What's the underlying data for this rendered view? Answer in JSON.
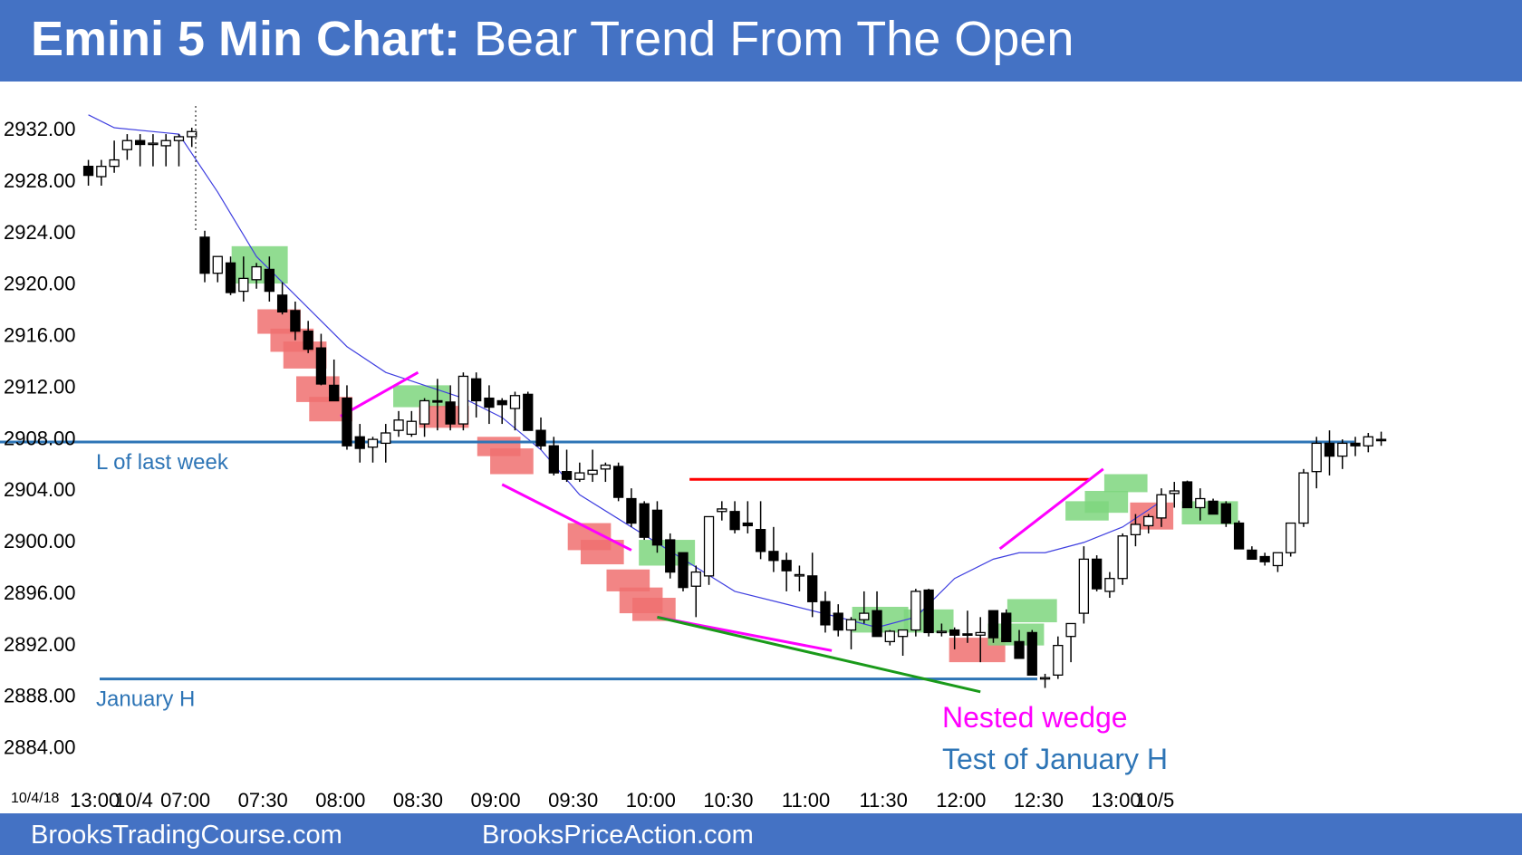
{
  "header": {
    "title_bold": "Emini 5 Min Chart:",
    "title_rest": " Bear Trend From The Open"
  },
  "footer": {
    "left": "BrooksTradingCourse.com",
    "right": "BrooksPriceAction.com"
  },
  "colors": {
    "header_bg": "#4472c4",
    "level_line": "#2e75b6",
    "ema": "#4040e0",
    "bull_box": "#7ed67e",
    "bear_box": "#f07070",
    "wedge": "#ff00ff",
    "trend_green": "#1a9a1a",
    "resistance": "#ff0000"
  },
  "chart_data": {
    "type": "candlestick",
    "date_label": "10/4/18",
    "ylim": [
      2882,
      2934
    ],
    "yticks": [
      "2932.00",
      "2928.00",
      "2924.00",
      "2920.00",
      "2916.00",
      "2912.00",
      "2908.00",
      "2904.00",
      "2900.00",
      "2896.00",
      "2892.00",
      "2888.00",
      "2884.00"
    ],
    "xticks": [
      {
        "label": "13:00",
        "bar": -8.5
      },
      {
        "label": "10/4",
        "bar": -5.5
      },
      {
        "label": "07:00",
        "bar": -1.5
      },
      {
        "label": "07:30",
        "bar": 4.5
      },
      {
        "label": "08:00",
        "bar": 10.5
      },
      {
        "label": "08:30",
        "bar": 16.5
      },
      {
        "label": "09:00",
        "bar": 22.5
      },
      {
        "label": "09:30",
        "bar": 28.5
      },
      {
        "label": "10:00",
        "bar": 34.5
      },
      {
        "label": "10:30",
        "bar": 40.5
      },
      {
        "label": "11:00",
        "bar": 46.5
      },
      {
        "label": "11:30",
        "bar": 52.5
      },
      {
        "label": "12:00",
        "bar": 58.5
      },
      {
        "label": "12:30",
        "bar": 64.5
      },
      {
        "label": "13:00",
        "bar": 70.5
      },
      {
        "label": "10/5",
        "bar": 73.5
      }
    ],
    "prior_day_bars": [
      [
        2929,
        2929.5,
        2927.5,
        2928.3
      ],
      [
        2928.2,
        2929.5,
        2927.5,
        2929.0
      ],
      [
        2929.0,
        2931.0,
        2928.5,
        2929.5
      ],
      [
        2930.3,
        2931.5,
        2929.5,
        2931.0
      ],
      [
        2931.0,
        2931.5,
        2929.0,
        2930.7
      ],
      [
        2930.7,
        2931.5,
        2929.0,
        2930.8
      ],
      [
        2930.6,
        2931.5,
        2929.0,
        2931.0
      ],
      [
        2931.0,
        2931.5,
        2929.0,
        2931.3
      ],
      [
        2931.3,
        2932.0,
        2930.5,
        2931.7
      ]
    ],
    "bars": [
      [
        2923.5,
        2924,
        2920,
        2920.7
      ],
      [
        2920.7,
        2922,
        2920,
        2922
      ],
      [
        2921.5,
        2922,
        2919,
        2919.2
      ],
      [
        2919.3,
        2922,
        2918.5,
        2920.3
      ],
      [
        2920.2,
        2921.5,
        2919.5,
        2921.2
      ],
      [
        2921,
        2922,
        2918.5,
        2919.3
      ],
      [
        2919,
        2920,
        2917.5,
        2917.7
      ],
      [
        2917.8,
        2918.5,
        2915.5,
        2916.2
      ],
      [
        2916.2,
        2917,
        2914.5,
        2914.8
      ],
      [
        2914.9,
        2916,
        2912,
        2912.1
      ],
      [
        2912,
        2914,
        2911,
        2910.8
      ],
      [
        2911,
        2912,
        2907,
        2907.3
      ],
      [
        2908,
        2909,
        2906,
        2907.1
      ],
      [
        2907.2,
        2908,
        2906,
        2907.8
      ],
      [
        2907.5,
        2909,
        2906,
        2908.3
      ],
      [
        2908.5,
        2910,
        2908,
        2909.3
      ],
      [
        2908.2,
        2910,
        2908,
        2909.2
      ],
      [
        2909.0,
        2911,
        2908,
        2910.8
      ],
      [
        2910.8,
        2912.5,
        2908.5,
        2910.7
      ],
      [
        2910.7,
        2912,
        2908.5,
        2909.0
      ],
      [
        2909.0,
        2913,
        2908.5,
        2912.7
      ],
      [
        2912.5,
        2913,
        2909.5,
        2910.8
      ],
      [
        2911,
        2912,
        2909,
        2910.3
      ],
      [
        2910.8,
        2911,
        2909,
        2910.5
      ],
      [
        2910.2,
        2911.5,
        2908.5,
        2911.2
      ],
      [
        2911.3,
        2911.5,
        2908.5,
        2908.5
      ],
      [
        2908.5,
        2909.5,
        2907,
        2907.3
      ],
      [
        2907.3,
        2908,
        2905,
        2905.2
      ],
      [
        2905.3,
        2907,
        2904.5,
        2904.7
      ],
      [
        2904.7,
        2906,
        2904.5,
        2905.2
      ],
      [
        2905.1,
        2907,
        2904.5,
        2905.4
      ],
      [
        2905.5,
        2906,
        2904.5,
        2905.8
      ],
      [
        2905.7,
        2906,
        2903,
        2903.3
      ],
      [
        2903.2,
        2904,
        2901,
        2901.3
      ],
      [
        2902.8,
        2903,
        2900,
        2900.2
      ],
      [
        2902.3,
        2903,
        2899,
        2899.6
      ],
      [
        2900,
        2900.5,
        2897,
        2897.5
      ],
      [
        2899,
        2899,
        2896,
        2896.3
      ],
      [
        2896.4,
        2898,
        2894,
        2897.5
      ],
      [
        2897.2,
        2901,
        2896.5,
        2901.8
      ],
      [
        2902.2,
        2903,
        2901.5,
        2902.4
      ],
      [
        2902.2,
        2903,
        2900.5,
        2900.8
      ],
      [
        2901.3,
        2903,
        2900.5,
        2901.1
      ],
      [
        2900.8,
        2903,
        2898.5,
        2899.1
      ],
      [
        2899.1,
        2901,
        2897.5,
        2898.4
      ],
      [
        2898.4,
        2899,
        2896,
        2897.6
      ],
      [
        2897.2,
        2898,
        2896,
        2897.3
      ],
      [
        2897.2,
        2899,
        2894,
        2895.2
      ],
      [
        2895.2,
        2896,
        2892.8,
        2893.4
      ],
      [
        2894.3,
        2895,
        2892.5,
        2893.0
      ],
      [
        2893.0,
        2894,
        2891.5,
        2893.8
      ],
      [
        2893.8,
        2896,
        2893.5,
        2894.3
      ],
      [
        2894.5,
        2896,
        2892.5,
        2892.5
      ],
      [
        2892.1,
        2893,
        2891.8,
        2892.9
      ],
      [
        2892.5,
        2893,
        2891.0,
        2893.0
      ],
      [
        2893.0,
        2896.2,
        2892.5,
        2896.0
      ],
      [
        2896.1,
        2896.2,
        2892.5,
        2892.8
      ],
      [
        2892.9,
        2893.5,
        2892.5,
        2892.9
      ],
      [
        2893.0,
        2893.2,
        2891.5,
        2892.6
      ],
      [
        2892.7,
        2894.5,
        2892,
        2892.6
      ],
      [
        2892.6,
        2894,
        2890.5,
        2892.8
      ],
      [
        2894.5,
        2894.5,
        2892,
        2892.4
      ],
      [
        2894.3,
        2894.6,
        2892.5,
        2892.1
      ],
      [
        2892.1,
        2893,
        2891,
        2890.8
      ],
      [
        2892.8,
        2893,
        2889.5,
        2889.5
      ],
      [
        2889.2,
        2889.6,
        2888.5,
        2889.3
      ],
      [
        2889.5,
        2892.5,
        2889.2,
        2891.8
      ],
      [
        2892.5,
        2893.5,
        2890.5,
        2893.5
      ],
      [
        2894.3,
        2899.5,
        2893.5,
        2898.5
      ],
      [
        2898.5,
        2898.8,
        2896.0,
        2896.2
      ],
      [
        2896.0,
        2897.5,
        2895.5,
        2897.0
      ],
      [
        2897.0,
        2900.5,
        2896.5,
        2900.3
      ],
      [
        2900.4,
        2902,
        2899.5,
        2901.2
      ],
      [
        2901.1,
        2902,
        2900.5,
        2901.8
      ],
      [
        2901.7,
        2904,
        2901,
        2903.5
      ],
      [
        2903.6,
        2904.5,
        2902.5,
        2903.8
      ],
      [
        2904.5,
        2904.6,
        2902.5,
        2902.5
      ],
      [
        2902.5,
        2904,
        2901.5,
        2903.2
      ],
      [
        2903.0,
        2903.2,
        2902.5,
        2902.0
      ],
      [
        2902.8,
        2903,
        2901.0,
        2901.3
      ],
      [
        2901.3,
        2901.5,
        2900.5,
        2899.3
      ],
      [
        2899.2,
        2899.5,
        2898.5,
        2898.5
      ],
      [
        2898.7,
        2899,
        2898.0,
        2898.3
      ],
      [
        2898.0,
        2899,
        2897.5,
        2899.0
      ],
      [
        2899.0,
        2901.3,
        2898.7,
        2901.3
      ],
      [
        2901.3,
        2905.5,
        2901.0,
        2905.2
      ],
      [
        2905.3,
        2908,
        2904,
        2907.5
      ],
      [
        2907.5,
        2908.5,
        2905,
        2906.5
      ],
      [
        2906.5,
        2907.8,
        2905.5,
        2907.5
      ],
      [
        2907.5,
        2908,
        2906.5,
        2907.3
      ],
      [
        2907.3,
        2908.3,
        2906.8,
        2908.0
      ],
      [
        2907.8,
        2908.4,
        2907.3,
        2907.7
      ]
    ],
    "ema_points": [
      [
        -9,
        2933
      ],
      [
        -7,
        2932
      ],
      [
        -3,
        2931.6
      ],
      [
        -2,
        2931.5
      ],
      [
        1,
        2927
      ],
      [
        4,
        2922
      ],
      [
        8,
        2918
      ],
      [
        11,
        2915
      ],
      [
        14,
        2913
      ],
      [
        17,
        2912
      ],
      [
        20,
        2911
      ],
      [
        23,
        2909.5
      ],
      [
        26,
        2907
      ],
      [
        29,
        2903.5
      ],
      [
        33,
        2901
      ],
      [
        37,
        2898.5
      ],
      [
        41,
        2896
      ],
      [
        45,
        2895.0
      ],
      [
        49,
        2894.0
      ],
      [
        52,
        2893.2
      ],
      [
        55,
        2894.0
      ],
      [
        58,
        2897
      ],
      [
        61,
        2898.5
      ],
      [
        63,
        2899.0
      ],
      [
        65,
        2899.0
      ],
      [
        68,
        2899.8
      ],
      [
        71,
        2901
      ],
      [
        74,
        2903
      ]
    ],
    "levels": [
      {
        "label": "L of last week",
        "price": 2907.6
      },
      {
        "label": "January H",
        "price": 2889.2
      }
    ],
    "annotations": {
      "wedge_label": "Nested wedge",
      "test_label": "Test of January H"
    }
  }
}
